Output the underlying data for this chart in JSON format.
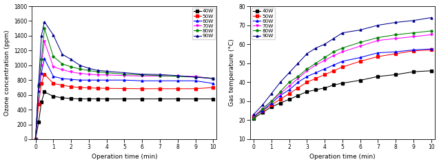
{
  "left": {
    "xlabel": "Operation time (min)",
    "ylabel": "Ozone concentration (ppm)",
    "xlim": [
      -0.2,
      10.2
    ],
    "ylim": [
      0,
      1800
    ],
    "yticks": [
      0,
      200,
      400,
      600,
      800,
      1000,
      1200,
      1400,
      1600,
      1800
    ],
    "xticks": [
      0,
      1,
      2,
      3,
      4,
      5,
      6,
      7,
      8,
      9,
      10
    ],
    "series": {
      "40W": {
        "color": "#000000",
        "marker": "s",
        "x": [
          0,
          0.17,
          0.33,
          0.5,
          1,
          1.5,
          2,
          2.5,
          3,
          3.5,
          4,
          5,
          6,
          7,
          8,
          9,
          10
        ],
        "y": [
          0,
          230,
          500,
          640,
          580,
          560,
          550,
          545,
          545,
          545,
          545,
          545,
          545,
          545,
          545,
          545,
          545
        ]
      },
      "50W": {
        "color": "#ff0000",
        "marker": "s",
        "x": [
          0,
          0.17,
          0.33,
          0.5,
          1,
          1.5,
          2,
          2.5,
          3,
          3.5,
          4,
          5,
          6,
          7,
          8,
          9,
          10
        ],
        "y": [
          0,
          480,
          760,
          880,
          755,
          730,
          710,
          700,
          695,
          690,
          688,
          685,
          683,
          683,
          683,
          683,
          700
        ]
      },
      "60W": {
        "color": "#0000ff",
        "marker": "^",
        "x": [
          0,
          0.17,
          0.33,
          0.5,
          1,
          1.5,
          2,
          2.5,
          3,
          3.5,
          4,
          5,
          6,
          7,
          8,
          9,
          10
        ],
        "y": [
          0,
          650,
          900,
          1090,
          850,
          820,
          810,
          800,
          800,
          800,
          800,
          800,
          790,
          790,
          790,
          790,
          755
        ]
      },
      "70W": {
        "color": "#ff00ff",
        "marker": "v",
        "x": [
          0,
          0.17,
          0.33,
          0.5,
          1,
          1.5,
          2,
          2.5,
          3,
          3.5,
          4,
          5,
          6,
          7,
          8,
          9,
          10
        ],
        "y": [
          0,
          700,
          1000,
          1320,
          980,
          940,
          910,
          890,
          880,
          870,
          870,
          860,
          855,
          855,
          855,
          850,
          820
        ]
      },
      "80W": {
        "color": "#008000",
        "marker": "o",
        "x": [
          0,
          0.17,
          0.33,
          0.5,
          1,
          1.5,
          2,
          2.5,
          3,
          3.5,
          4,
          5,
          6,
          7,
          8,
          9,
          10
        ],
        "y": [
          0,
          720,
          1080,
          1500,
          1120,
          1020,
          980,
          950,
          930,
          910,
          900,
          880,
          870,
          860,
          850,
          840,
          825
        ]
      },
      "90W": {
        "color": "#00008b",
        "marker": "^",
        "x": [
          0,
          0.17,
          0.33,
          0.5,
          1,
          1.5,
          2,
          2.5,
          3,
          3.5,
          4,
          5,
          6,
          7,
          8,
          9,
          10
        ],
        "y": [
          0,
          750,
          1400,
          1590,
          1410,
          1150,
          1080,
          1000,
          960,
          930,
          920,
          900,
          880,
          875,
          860,
          840,
          820
        ]
      }
    }
  },
  "right": {
    "xlabel": "Operation time (min)",
    "ylabel": "Gas temperature (°C)",
    "xlim": [
      -0.2,
      10.2
    ],
    "ylim": [
      10,
      80
    ],
    "yticks": [
      10,
      20,
      30,
      40,
      50,
      60,
      70,
      80
    ],
    "xticks": [
      0,
      1,
      2,
      3,
      4,
      5,
      6,
      7,
      8,
      9,
      10
    ],
    "series": {
      "40W": {
        "color": "#000000",
        "marker": "s",
        "x": [
          0,
          0.5,
          1,
          1.5,
          2,
          2.5,
          3,
          3.5,
          4,
          4.5,
          5,
          6,
          7,
          8,
          9,
          10
        ],
        "y": [
          21,
          24,
          27,
          29,
          31,
          33,
          35,
          36,
          37,
          38.5,
          39.5,
          41,
          43,
          44,
          45.5,
          46
        ]
      },
      "50W": {
        "color": "#ff0000",
        "marker": "s",
        "x": [
          0,
          0.5,
          1,
          1.5,
          2,
          2.5,
          3,
          3.5,
          4,
          4.5,
          5,
          6,
          7,
          8,
          9,
          10
        ],
        "y": [
          22,
          25,
          28,
          31,
          34,
          37,
          40,
          42,
          44,
          46,
          48,
          51,
          53.5,
          55,
          56.5,
          57
        ]
      },
      "60W": {
        "color": "#0000ff",
        "marker": "^",
        "x": [
          0,
          0.5,
          1,
          1.5,
          2,
          2.5,
          3,
          3.5,
          4,
          4.5,
          5,
          6,
          7,
          8,
          9,
          10
        ],
        "y": [
          22,
          25,
          29,
          33,
          36,
          40,
          43,
          45,
          47,
          49,
          51,
          53,
          55.5,
          56,
          57,
          57.5
        ]
      },
      "70W": {
        "color": "#ff00ff",
        "marker": "v",
        "x": [
          0,
          0.5,
          1,
          1.5,
          2,
          2.5,
          3,
          3.5,
          4,
          4.5,
          5,
          6,
          7,
          8,
          9,
          10
        ],
        "y": [
          22,
          26,
          30,
          34,
          38,
          42,
          46,
          49,
          51.5,
          54,
          56,
          59,
          62,
          63,
          64,
          65
        ]
      },
      "80W": {
        "color": "#008000",
        "marker": "o",
        "x": [
          0,
          0.5,
          1,
          1.5,
          2,
          2.5,
          3,
          3.5,
          4,
          4.5,
          5,
          6,
          7,
          8,
          9,
          10
        ],
        "y": [
          21,
          26,
          30,
          35,
          40,
          43,
          47,
          50,
          53,
          56,
          58,
          61,
          63.5,
          65,
          66,
          67
        ]
      },
      "90W": {
        "color": "#00008b",
        "marker": "^",
        "x": [
          0,
          0.5,
          1,
          1.5,
          2,
          2.5,
          3,
          3.5,
          4,
          4.5,
          5,
          6,
          7,
          8,
          9,
          10
        ],
        "y": [
          23,
          28,
          34,
          40,
          45,
          50,
          55,
          58,
          60,
          63,
          66,
          67.5,
          70,
          71.5,
          72.5,
          74
        ]
      }
    }
  },
  "fig_width": 6.37,
  "fig_height": 2.38,
  "dpi": 100
}
